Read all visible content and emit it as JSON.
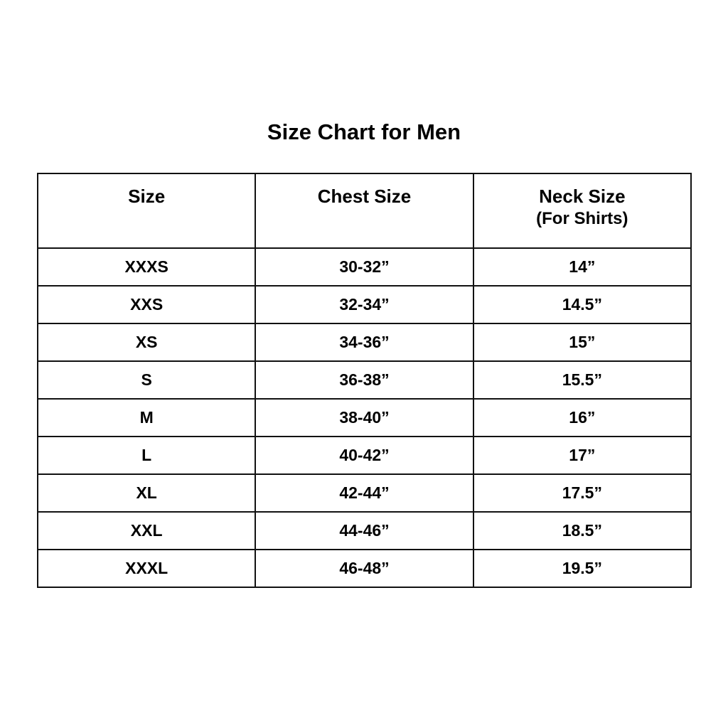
{
  "title": "Size Chart for Men",
  "headers": [
    {
      "label": "Size",
      "sub": ""
    },
    {
      "label": "Chest Size",
      "sub": ""
    },
    {
      "label": "Neck Size",
      "sub": "(For Shirts)"
    }
  ],
  "rows": [
    [
      "XXXS",
      "30-32”",
      "14”"
    ],
    [
      "XXS",
      "32-34”",
      "14.5”"
    ],
    [
      "XS",
      "34-36”",
      "15”"
    ],
    [
      "S",
      "36-38”",
      "15.5”"
    ],
    [
      "M",
      "38-40”",
      "16”"
    ],
    [
      "L",
      "40-42”",
      "17”"
    ],
    [
      "XL",
      "42-44”",
      "17.5”"
    ],
    [
      "XXL",
      "44-46”",
      "18.5”"
    ],
    [
      "XXXL",
      "46-48”",
      "19.5”"
    ]
  ]
}
